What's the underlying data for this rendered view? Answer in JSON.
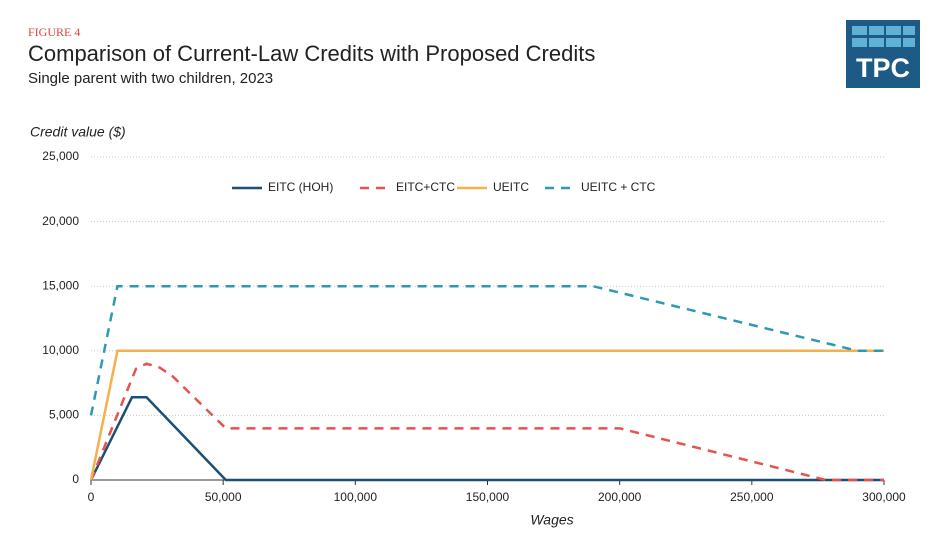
{
  "figure_label": "FIGURE 4",
  "logo": "TPC",
  "chart_data": {
    "type": "line",
    "title": "Comparison of Current-Law Credits with Proposed Credits",
    "subtitle": "Single parent with two children, 2023",
    "y_label": "Credit value ($)",
    "x_label": "Wages",
    "xlim": [
      0,
      300000
    ],
    "ylim": [
      0,
      25000
    ],
    "xticks": [
      0,
      {
        "value": 50000,
        "label": "50,000"
      },
      {
        "value": 100000,
        "label": "100,000"
      },
      {
        "value": 150000,
        "label": "150,000"
      },
      {
        "value": 200000,
        "label": "200,000"
      },
      {
        "value": 250000,
        "label": "250,000"
      },
      {
        "value": 300000,
        "label": "300,000"
      }
    ],
    "yticks": [
      0,
      {
        "value": 5000,
        "label": "5,000"
      },
      {
        "value": 10000,
        "label": "10,000"
      },
      {
        "value": 15000,
        "label": "15,000"
      },
      {
        "value": 20000,
        "label": "20,000"
      },
      {
        "value": 25000,
        "label": "25,000"
      }
    ],
    "grid": true,
    "legend": "top",
    "series": [
      {
        "name": "EITC (HOH)",
        "color": "#1d4f76",
        "dashed": false,
        "x": [
          0,
          15500,
          21000,
          51000,
          300000
        ],
        "values": [
          0,
          6400,
          6400,
          0,
          0
        ]
      },
      {
        "name": "EITC+CTC",
        "color": "#e5534b",
        "dashed": true,
        "x": [
          0,
          17000,
          21000,
          26000,
          31000,
          51000,
          200000,
          278000,
          300000
        ],
        "values": [
          0,
          8600,
          9000,
          8700,
          8000,
          4000,
          4000,
          0,
          0
        ]
      },
      {
        "name": "UEITC",
        "color": "#f4b04f",
        "dashed": false,
        "x": [
          0,
          10000,
          300000
        ],
        "values": [
          0,
          10000,
          10000
        ]
      },
      {
        "name": "UEITC + CTC",
        "color": "#2b9bb3",
        "dashed": true,
        "x": [
          0,
          10000,
          190000,
          290000,
          300000
        ],
        "values": [
          5000,
          15000,
          15000,
          10000,
          10000
        ]
      }
    ]
  }
}
